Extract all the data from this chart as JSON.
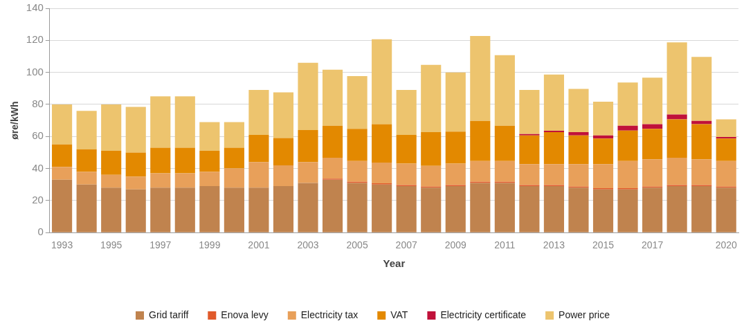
{
  "chart_data": {
    "type": "bar",
    "stacked": true,
    "xlabel": "Year",
    "ylabel": "øre/kWh",
    "categories": [
      "1993",
      null,
      "1995",
      null,
      "1997",
      null,
      "1999",
      null,
      "2001",
      null,
      "2003",
      null,
      "2005",
      null,
      "2007",
      null,
      "2009",
      null,
      "2011",
      null,
      "2013",
      null,
      "2015",
      null,
      "2017",
      null,
      null,
      "2020"
    ],
    "ylim": [
      0,
      140
    ],
    "yticks": [
      0,
      20,
      40,
      60,
      80,
      100,
      120,
      140
    ],
    "grid": "y",
    "legend": "bottom",
    "series": [
      {
        "name": "Grid tariff",
        "color": "#c0834e",
        "values": [
          33,
          30,
          28,
          27,
          28,
          28,
          29,
          28,
          28,
          29,
          31,
          33,
          31,
          30,
          29,
          28,
          29,
          31,
          31,
          29,
          29,
          28,
          27,
          27,
          28,
          29,
          29,
          28
        ]
      },
      {
        "name": "Enova levy",
        "color": "#e05a2b",
        "values": [
          0,
          0,
          0,
          0,
          0,
          0,
          0,
          0,
          0,
          0,
          0,
          0.7,
          0.7,
          0.7,
          0.7,
          0.7,
          0.7,
          0.7,
          0.7,
          0.7,
          0.7,
          0.7,
          0.7,
          0.7,
          0.7,
          0.7,
          0.7,
          0.7
        ]
      },
      {
        "name": "Electricity tax",
        "color": "#e8a05a",
        "values": [
          8,
          8,
          8,
          8,
          9,
          9,
          9,
          12,
          16,
          13,
          13,
          13,
          13,
          13,
          13.3,
          13,
          13.3,
          13,
          13,
          13,
          13,
          14,
          15,
          17,
          17,
          17,
          16,
          16
        ]
      },
      {
        "name": "VAT",
        "color": "#e38900",
        "values": [
          14,
          14,
          15,
          15,
          16,
          16,
          13,
          13,
          17,
          17,
          20,
          20,
          20,
          24,
          18,
          21,
          20,
          25,
          22,
          18,
          20,
          18,
          16,
          19,
          19,
          24,
          22,
          14
        ]
      },
      {
        "name": "Electricity certificate",
        "color": "#c0113a",
        "values": [
          0,
          0,
          0,
          0,
          0,
          0,
          0,
          0,
          0,
          0,
          0,
          0,
          0,
          0,
          0,
          0,
          0,
          0,
          0,
          0.8,
          0.9,
          2,
          2,
          3,
          3,
          3,
          2,
          1
        ]
      },
      {
        "name": "Power price",
        "color": "#edc46e",
        "values": [
          25,
          24,
          29,
          28.5,
          32,
          32,
          18,
          16,
          28,
          28.5,
          42,
          35,
          33,
          53,
          28,
          42,
          37,
          53,
          44,
          27.5,
          35,
          27,
          21,
          27,
          29,
          45,
          40,
          11
        ]
      }
    ]
  }
}
